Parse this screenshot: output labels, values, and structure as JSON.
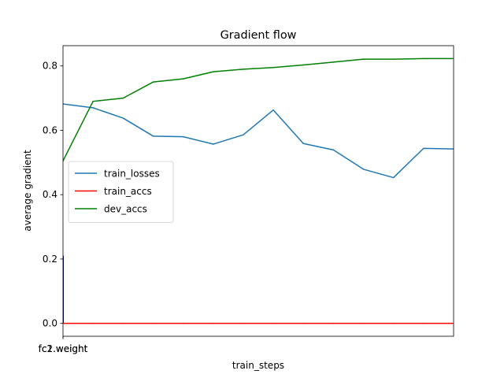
{
  "chart_data": {
    "type": "line",
    "title": "Gradient flow",
    "xlabel": "train_steps",
    "ylabel": "average gradient",
    "ylim": [
      -0.04,
      0.863
    ],
    "xlim": [
      0,
      13
    ],
    "yticks": [
      0.0,
      0.2,
      0.4,
      0.6,
      0.8
    ],
    "ytick_labels": [
      "0.0",
      "0.2",
      "0.4",
      "0.6",
      "0.8"
    ],
    "xtick_labels": [
      "fc1.weight",
      "fc2.weight"
    ],
    "legend_position": "center-left",
    "grid": false,
    "x": [
      0,
      1,
      2,
      3,
      4,
      5,
      6,
      7,
      8,
      9,
      10,
      11,
      12,
      13
    ],
    "series": [
      {
        "name": "train_losses",
        "color": "#1f77b4",
        "values": [
          0.682,
          0.67,
          0.638,
          0.582,
          0.58,
          0.557,
          0.586,
          0.663,
          0.559,
          0.539,
          0.479,
          0.453,
          0.544,
          0.542
        ]
      },
      {
        "name": "train_accs",
        "color": "#ff0000",
        "values": [
          0.0,
          0.0,
          0.0,
          0.0,
          0.0,
          0.0,
          0.0,
          0.0,
          0.0,
          0.0,
          0.0,
          0.0,
          0.0,
          0.0
        ]
      },
      {
        "name": "dev_accs",
        "color": "#008000",
        "values": [
          0.505,
          0.69,
          0.7,
          0.75,
          0.76,
          0.782,
          0.79,
          0.795,
          0.803,
          0.812,
          0.821,
          0.821,
          0.823,
          0.823
        ]
      }
    ],
    "gradient_bars": {
      "color": "#000080",
      "values": [
        0.21,
        0.0
      ]
    }
  }
}
